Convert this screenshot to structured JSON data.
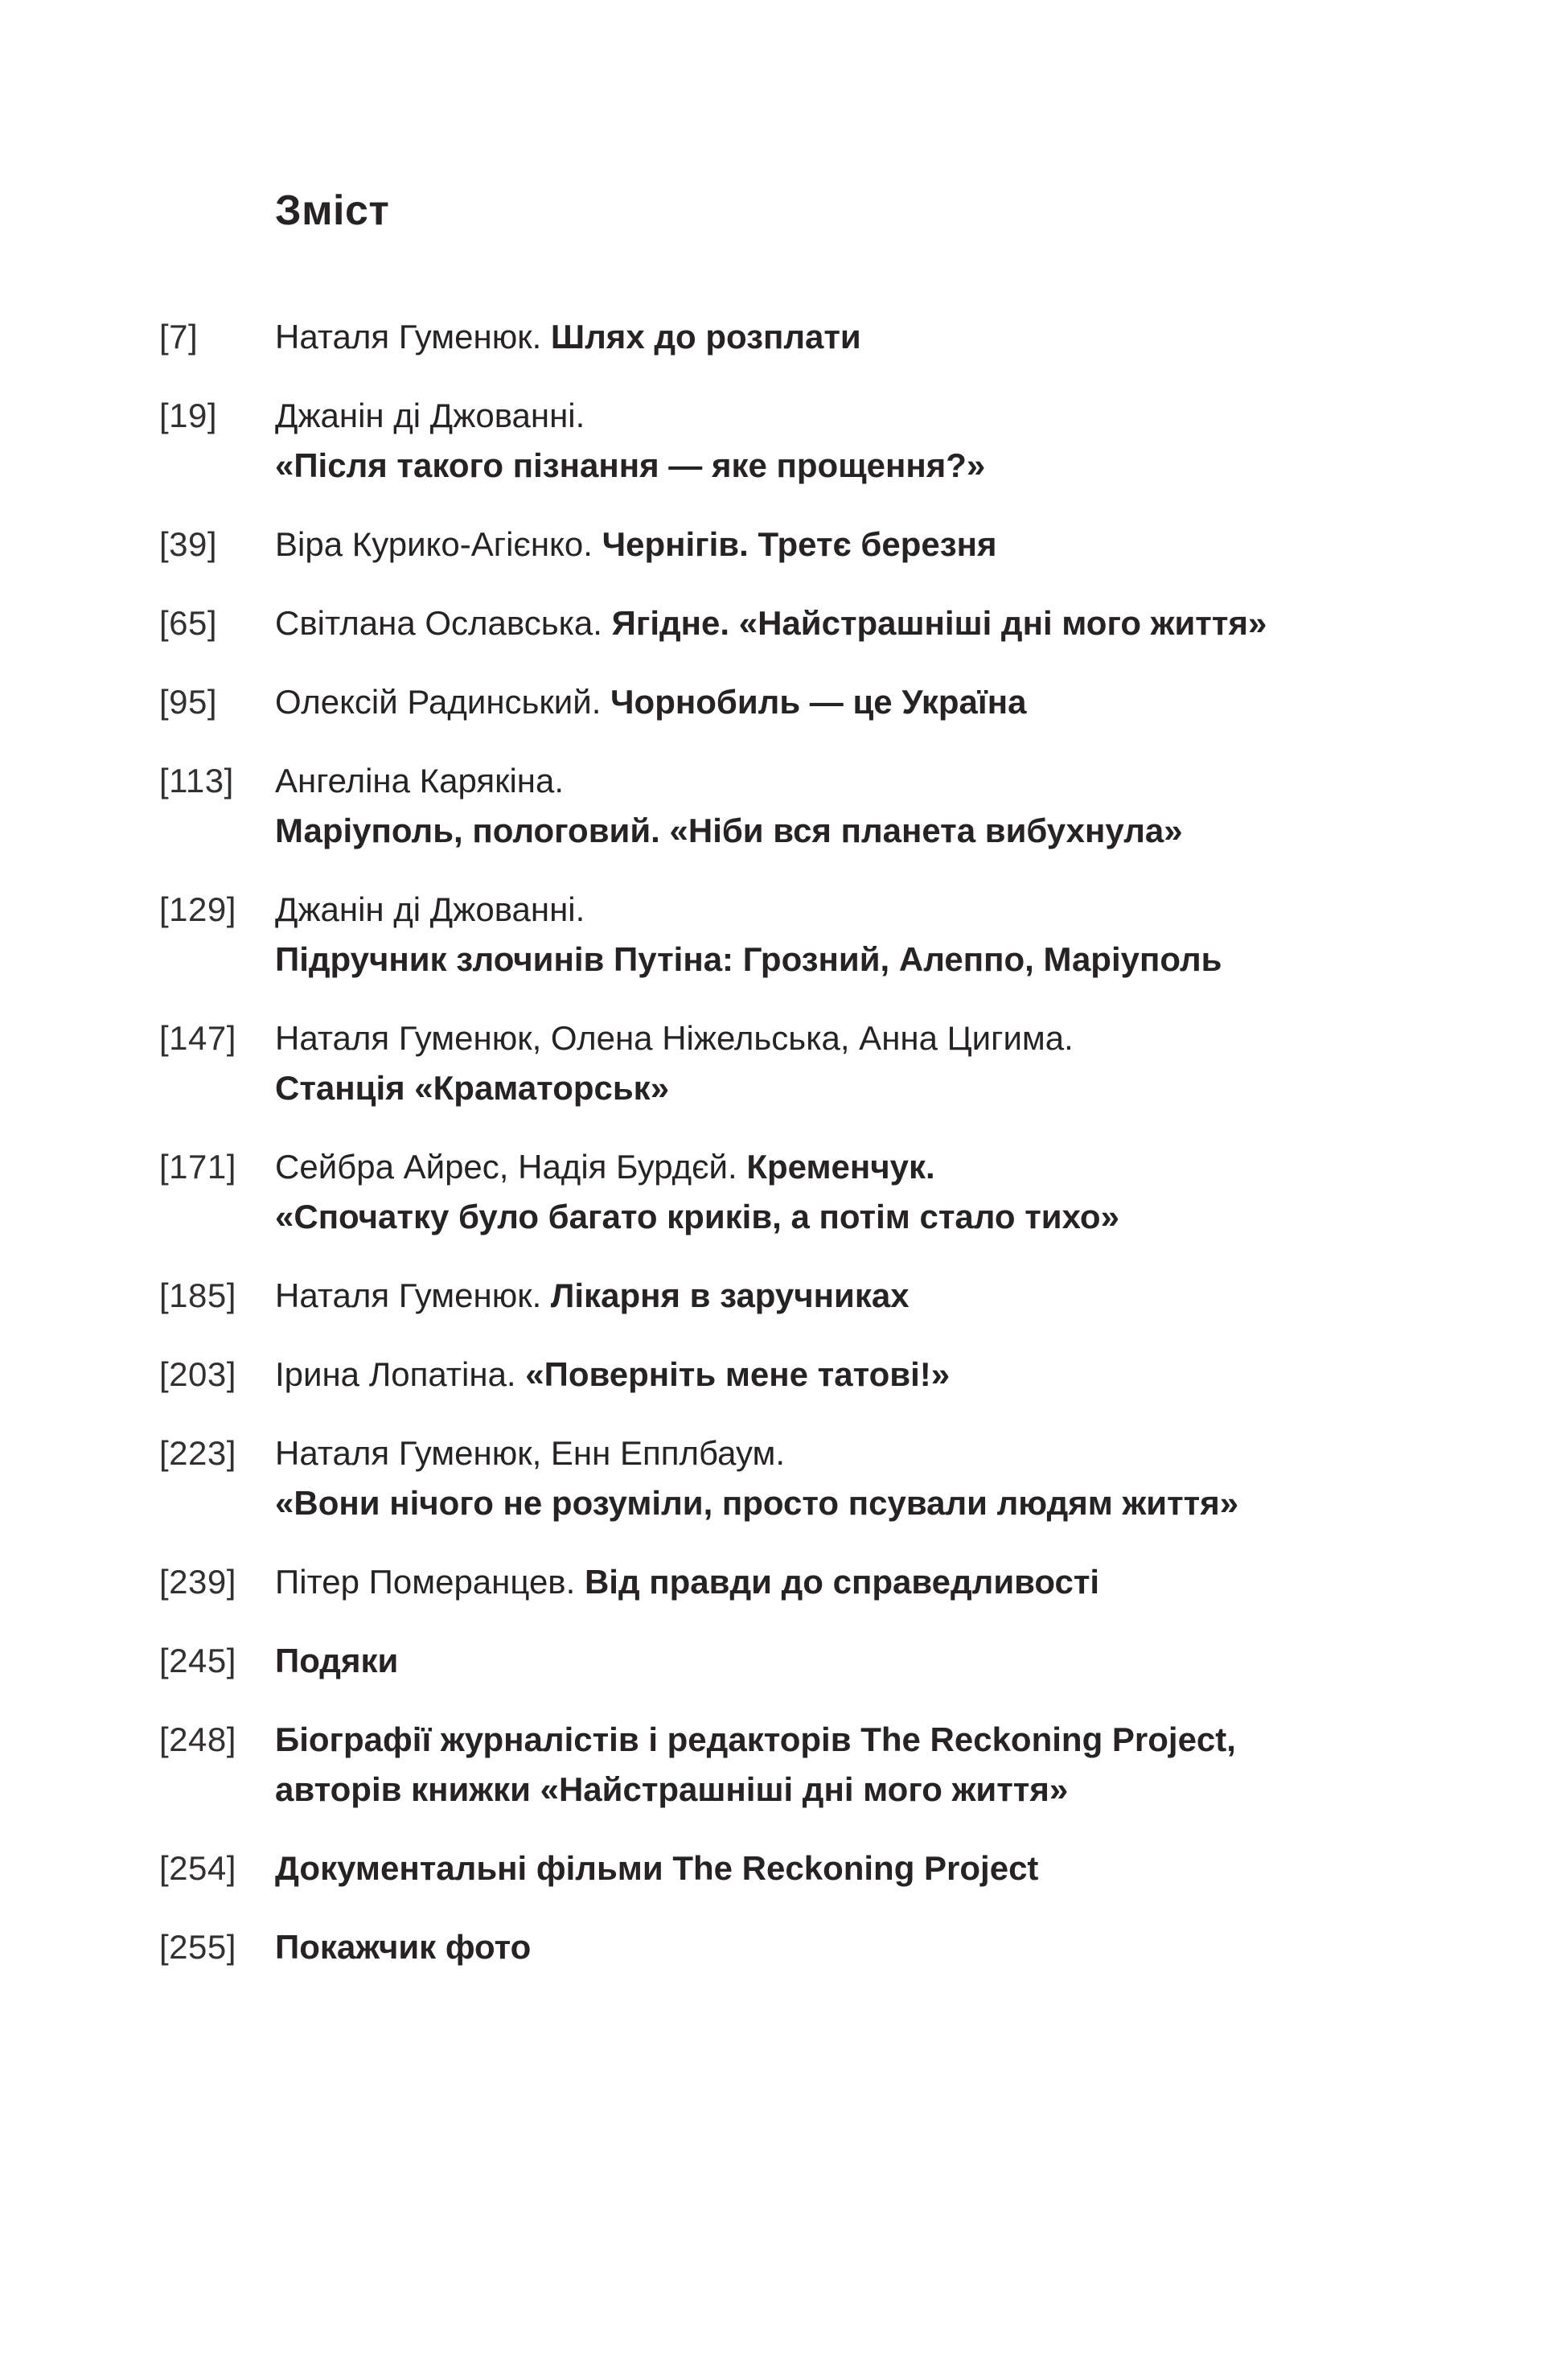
{
  "page": {
    "title": "Зміст",
    "colors": {
      "text": "#272324",
      "background": "#ffffff"
    }
  },
  "toc": {
    "entries": [
      {
        "label": "[7]",
        "lines": [
          [
            {
              "text": "Наталя Гуменюк. ",
              "bold": false
            },
            {
              "text": "Шлях до розплати",
              "bold": true
            }
          ]
        ]
      },
      {
        "label": "[19]",
        "lines": [
          [
            {
              "text": "Джанін ді Джованні.",
              "bold": false
            }
          ],
          [
            {
              "text": "«Після такого пізнання — яке прощення?»",
              "bold": true
            }
          ]
        ]
      },
      {
        "label": "[39]",
        "lines": [
          [
            {
              "text": "Віра Курико-Агієнко. ",
              "bold": false
            },
            {
              "text": "Чернігів. Третє березня",
              "bold": true
            }
          ]
        ]
      },
      {
        "label": "[65]",
        "lines": [
          [
            {
              "text": "Світлана Ославська. ",
              "bold": false
            },
            {
              "text": "Ягідне. «Найстрашніші дні мого життя»",
              "bold": true
            }
          ]
        ]
      },
      {
        "label": "[95]",
        "lines": [
          [
            {
              "text": "Олексій Радинський. ",
              "bold": false
            },
            {
              "text": "Чорнобиль — це Україна",
              "bold": true
            }
          ]
        ]
      },
      {
        "label": "[113]",
        "lines": [
          [
            {
              "text": "Ангеліна Карякіна.",
              "bold": false
            }
          ],
          [
            {
              "text": "Маріуполь, пологовий. «Ніби вся планета вибухнула»",
              "bold": true
            }
          ]
        ]
      },
      {
        "label": "[129]",
        "lines": [
          [
            {
              "text": "Джанін ді Джованні.",
              "bold": false
            }
          ],
          [
            {
              "text": "Підручник злочинів Путіна: Грозний, Алеппо, Маріуполь",
              "bold": true
            }
          ]
        ]
      },
      {
        "label": "[147]",
        "lines": [
          [
            {
              "text": "Наталя Гуменюк, Олена Ніжельська, Анна Цигима.",
              "bold": false
            }
          ],
          [
            {
              "text": "Станція «Краматорськ»",
              "bold": true
            }
          ]
        ]
      },
      {
        "label": "[171]",
        "lines": [
          [
            {
              "text": "Сейбра Айрес, Надія Бурдєй. ",
              "bold": false
            },
            {
              "text": "Кременчук.",
              "bold": true
            }
          ],
          [
            {
              "text": "«Спочатку було багато криків, а потім стало тихо»",
              "bold": true
            }
          ]
        ]
      },
      {
        "label": "[185]",
        "lines": [
          [
            {
              "text": "Наталя Гуменюк. ",
              "bold": false
            },
            {
              "text": "Лікарня в заручниках",
              "bold": true
            }
          ]
        ]
      },
      {
        "label": "[203]",
        "lines": [
          [
            {
              "text": "Ірина Лопатіна. ",
              "bold": false
            },
            {
              "text": "«Поверніть мене татові!»",
              "bold": true
            }
          ]
        ]
      },
      {
        "label": "[223]",
        "lines": [
          [
            {
              "text": "Наталя Гуменюк, Енн Епплбаум.",
              "bold": false
            }
          ],
          [
            {
              "text": "«Вони нічого не розуміли, просто псували людям життя»",
              "bold": true
            }
          ]
        ]
      },
      {
        "label": "[239]",
        "lines": [
          [
            {
              "text": "Пітер Померанцев. ",
              "bold": false
            },
            {
              "text": "Від правди до справедливості",
              "bold": true
            }
          ]
        ]
      },
      {
        "label": "[245]",
        "lines": [
          [
            {
              "text": "Подяки",
              "bold": true
            }
          ]
        ]
      },
      {
        "label": "[248]",
        "lines": [
          [
            {
              "text": "Біографії  журналістів і редакторів The Reckoning Project,",
              "bold": true
            }
          ],
          [
            {
              "text": "авторів книжки «Найстрашніші дні мого життя»",
              "bold": true
            }
          ]
        ]
      },
      {
        "label": "[254]",
        "lines": [
          [
            {
              "text": "Документальні фільми The Reckoning Project",
              "bold": true
            }
          ]
        ]
      },
      {
        "label": "[255]",
        "lines": [
          [
            {
              "text": "Покажчик фото",
              "bold": true
            }
          ]
        ]
      }
    ]
  }
}
